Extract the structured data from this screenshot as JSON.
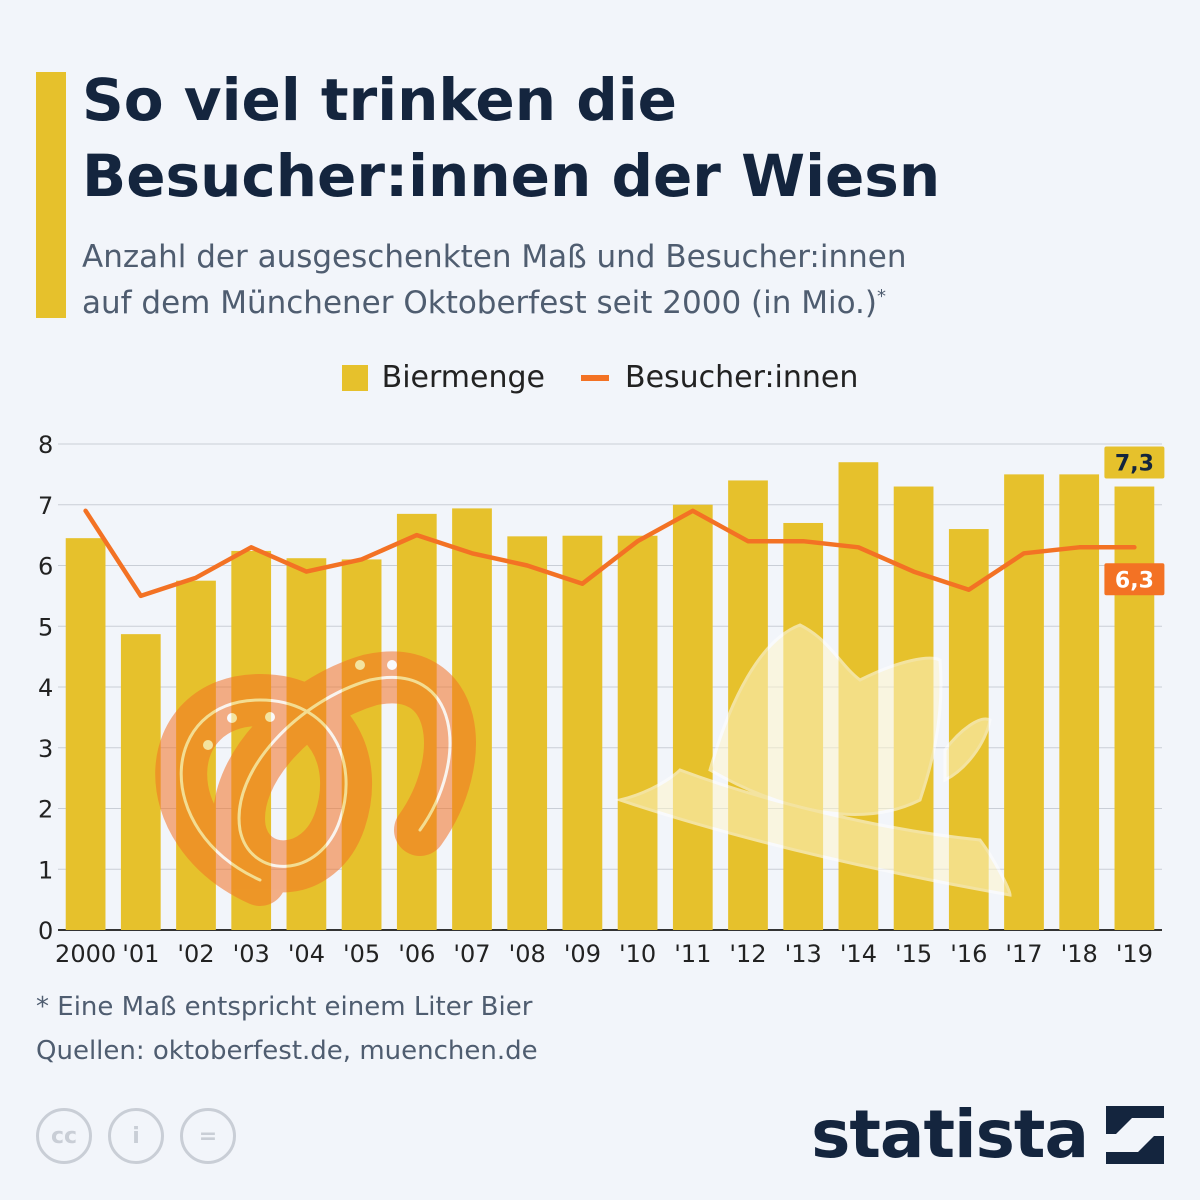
{
  "header": {
    "title_line1": "So viel trinken die",
    "title_line2": "Besucher:innen der Wiesn",
    "subtitle_line1": "Anzahl der ausgeschenkten Maß und Besucher:innen",
    "subtitle_line2": "auf dem Münchener Oktoberfest seit 2000 (in Mio.)",
    "subtitle_mark": "*"
  },
  "legend": {
    "bar_label": "Biermenge",
    "line_label": "Besucher:innen"
  },
  "colors": {
    "bar": "#e6c12c",
    "line": "#f37224",
    "title": "#14253e",
    "background": "#f2f5fa"
  },
  "chart_data": {
    "type": "bar",
    "categories": [
      "2000",
      "'01",
      "'02",
      "'03",
      "'04",
      "'05",
      "'06",
      "'07",
      "'08",
      "'09",
      "'10",
      "'11",
      "'12",
      "'13",
      "'14",
      "'15",
      "'16",
      "'17",
      "'18",
      "'19"
    ],
    "series": [
      {
        "name": "Biermenge",
        "type": "bar",
        "values": [
          6.45,
          4.87,
          5.75,
          6.24,
          6.12,
          6.1,
          6.85,
          6.94,
          6.48,
          6.49,
          6.49,
          7.0,
          7.4,
          6.7,
          7.7,
          7.3,
          6.6,
          7.5,
          7.5,
          7.3
        ]
      },
      {
        "name": "Besucher:innen",
        "type": "line",
        "values": [
          6.9,
          5.5,
          5.8,
          6.3,
          5.9,
          6.1,
          6.5,
          6.2,
          6.0,
          5.7,
          6.4,
          6.9,
          6.4,
          6.4,
          6.3,
          5.9,
          5.6,
          6.2,
          6.3,
          6.3
        ]
      }
    ],
    "y_ticks": [
      "0",
      "1",
      "2",
      "3",
      "4",
      "5",
      "6",
      "7",
      "8"
    ],
    "ylim": [
      0,
      8
    ],
    "grid": true,
    "annotations": [
      {
        "series": "Biermenge",
        "label": "7,3"
      },
      {
        "series": "Besucher:innen",
        "label": "6,3"
      }
    ],
    "xlabel": "",
    "ylabel": ""
  },
  "footer": {
    "note": "* Eine Maß entspricht einem Liter Bier",
    "sources": "Quellen: oktoberfest.de, muenchen.de",
    "cc_icons": [
      "cc",
      "i",
      "="
    ],
    "brand": "statista"
  }
}
